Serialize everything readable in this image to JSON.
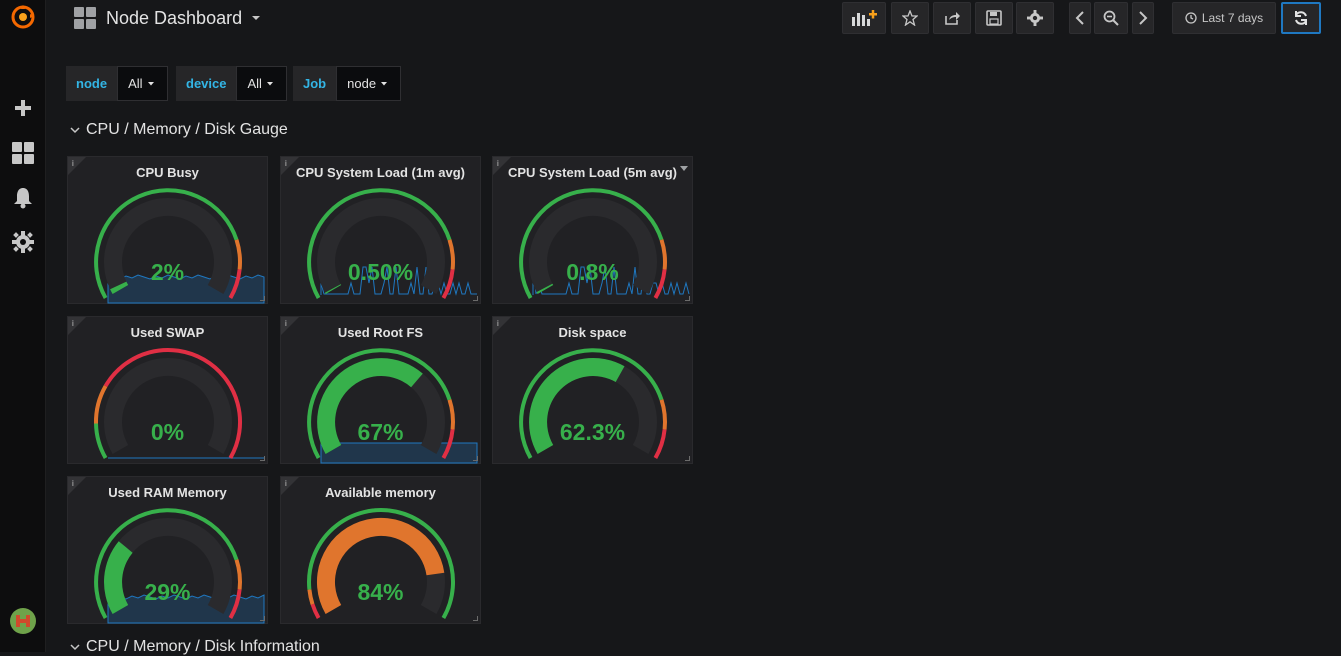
{
  "header": {
    "title": "Node Dashboard",
    "time_range": "Last 7 days"
  },
  "variables": [
    {
      "label": "node",
      "value": "All"
    },
    {
      "label": "device",
      "value": "All"
    },
    {
      "label": "Job",
      "value": "node"
    }
  ],
  "rows": {
    "gauge_row_title": "CPU / Memory / Disk Gauge",
    "info_row_title": "CPU / Memory / Disk Information"
  },
  "panels": [
    {
      "title": "CPU Busy",
      "value": "2%",
      "level": 0.02,
      "sparkline": "low"
    },
    {
      "title": "CPU System Load (1m avg)",
      "value": "0.50%",
      "level": 0.005,
      "sparkline": "spiky"
    },
    {
      "title": "CPU System Load (5m avg)",
      "value": "0.8%",
      "level": 0.008,
      "sparkline": "spiky"
    },
    {
      "title": "Used SWAP",
      "value": "0%",
      "level": 0.0,
      "sparkline": "flat"
    },
    {
      "title": "Used Root FS",
      "value": "67%",
      "level": 0.67,
      "sparkline": "block"
    },
    {
      "title": "Disk space",
      "value": "62.3%",
      "level": 0.623,
      "sparkline": "none"
    },
    {
      "title": "Used RAM Memory",
      "value": "29%",
      "level": 0.29,
      "sparkline": "low"
    },
    {
      "title": "Available memory",
      "value": "84%",
      "level": 0.84,
      "sparkline": "none"
    }
  ],
  "colors": {
    "green": "#37b04b",
    "orange": "#e0752d",
    "red": "#e02f44",
    "accent": "#33b5e5"
  }
}
